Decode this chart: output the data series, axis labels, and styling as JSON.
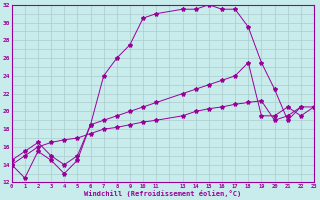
{
  "xlabel": "Windchill (Refroidissement éolien,°C)",
  "background_color": "#c8ecec",
  "line_color": "#990099",
  "grid_color": "#aacccc",
  "xlim": [
    0,
    23
  ],
  "ylim": [
    12,
    32
  ],
  "line1_x": [
    0,
    1,
    2,
    3,
    4,
    5,
    6,
    7,
    8,
    9,
    10,
    11,
    13,
    14,
    15,
    16,
    17,
    18,
    19,
    20,
    21,
    22
  ],
  "line1_y": [
    14,
    12.5,
    15.5,
    14.5,
    13,
    14.5,
    18.5,
    24,
    26,
    27.5,
    30.5,
    31,
    31.5,
    31.5,
    32,
    31.5,
    31.5,
    29.5,
    25.5,
    22.5,
    19,
    20.5
  ],
  "line2_x": [
    0,
    1,
    2,
    3,
    4,
    5,
    6,
    7,
    8,
    9,
    10,
    11,
    13,
    14,
    15,
    16,
    17,
    18,
    19,
    20,
    21,
    22,
    23
  ],
  "line2_y": [
    14.5,
    15.5,
    16.5,
    15,
    14,
    15,
    18.5,
    19,
    19.5,
    20,
    20.5,
    21,
    22,
    22.5,
    23,
    23.5,
    24,
    25.5,
    19.5,
    19.5,
    20.5,
    19.5,
    20.5
  ],
  "line3_x": [
    0,
    1,
    2,
    3,
    4,
    5,
    6,
    7,
    8,
    9,
    10,
    11,
    13,
    14,
    15,
    16,
    17,
    18,
    19,
    20,
    21,
    22,
    23
  ],
  "line3_y": [
    14,
    15,
    16,
    16.5,
    16.8,
    17,
    17.5,
    18,
    18.2,
    18.5,
    18.8,
    19,
    19.5,
    20,
    20.3,
    20.5,
    20.8,
    21,
    21.2,
    19,
    19.5,
    20.5,
    20.5
  ]
}
